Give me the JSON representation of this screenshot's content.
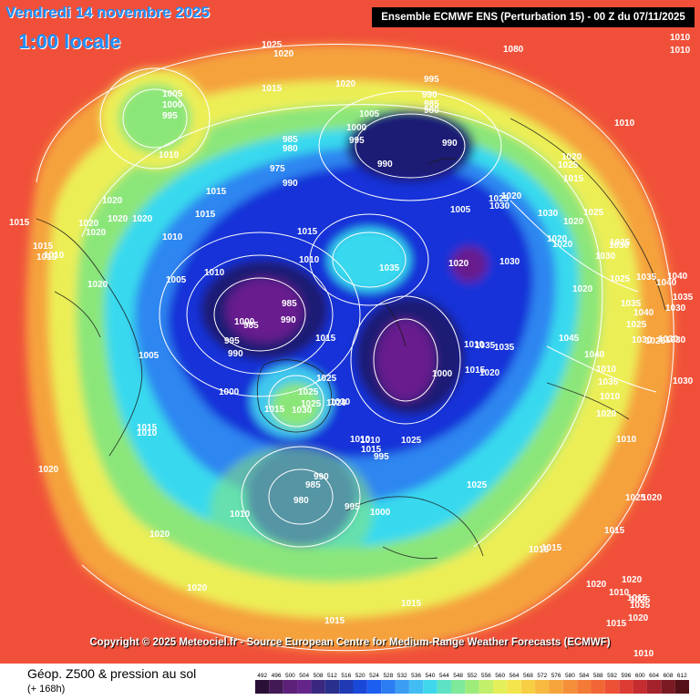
{
  "header": {
    "date": "Vendredi 14 novembre 2025",
    "time": "1:00 locale",
    "run": "Ensemble ECMWF ENS  (Perturbation 15)  -  00 Z du 07/11/2025"
  },
  "copyright": "Copyright © 2025 Meteociel.fr - Source European Centre for Medium-Range Weather Forecasts (ECMWF)",
  "footer": {
    "title": "Géop. Z500 & pression au sol",
    "subtitle": "(+ 168h)"
  },
  "colors": {
    "warm_outer": "#f0503a",
    "orange": "#f5a23c",
    "yellow": "#ecee57",
    "green": "#8be67a",
    "cyan": "#39d9ee",
    "blue": "#2d86f0",
    "deep_blue": "#1533d8",
    "navy": "#1a1f74",
    "purple": "#671f8e",
    "isobar": "#ffffff",
    "coast": "#1a1a1a"
  },
  "scale": {
    "labels": [
      "492",
      "496",
      "500",
      "504",
      "508",
      "512",
      "516",
      "520",
      "524",
      "528",
      "532",
      "536",
      "540",
      "544",
      "548",
      "552",
      "556",
      "560",
      "564",
      "568",
      "572",
      "576",
      "580",
      "584",
      "588",
      "592",
      "596",
      "600",
      "604",
      "608",
      "612"
    ],
    "colors": [
      "#2a1036",
      "#431a55",
      "#5d217a",
      "#652489",
      "#3a2780",
      "#28308c",
      "#1f3ab3",
      "#1a48d8",
      "#1b5ef0",
      "#2c7cf2",
      "#3c9df4",
      "#42bdf4",
      "#3fd7ec",
      "#5de2c4",
      "#7ee89b",
      "#9dec7a",
      "#c2ef6c",
      "#e4f05a",
      "#f4e44d",
      "#f7cf45",
      "#f7b940",
      "#f6a53c",
      "#f58f39",
      "#f47a37",
      "#f26636",
      "#ec5035",
      "#dc3c33",
      "#c42c30",
      "#a4222b",
      "#7c1a24",
      "#561018"
    ]
  },
  "map_labels": [
    {
      "text": "1025"
    },
    {
      "text": "1020"
    },
    {
      "text": "1015"
    },
    {
      "text": "1020"
    },
    {
      "text": "1005"
    },
    {
      "text": "1000"
    },
    {
      "text": "995"
    },
    {
      "text": "1010"
    },
    {
      "text": "995"
    },
    {
      "text": "990"
    },
    {
      "text": "985"
    },
    {
      "text": "980"
    },
    {
      "text": "990"
    },
    {
      "text": "1080"
    },
    {
      "text": "1010"
    },
    {
      "text": "1010"
    },
    {
      "text": "1005"
    },
    {
      "text": "1000"
    },
    {
      "text": "995"
    },
    {
      "text": "990"
    },
    {
      "text": "985"
    },
    {
      "text": "980"
    },
    {
      "text": "975"
    },
    {
      "text": "990"
    },
    {
      "text": "1010"
    },
    {
      "text": "1025"
    },
    {
      "text": "1020"
    },
    {
      "text": "1015"
    },
    {
      "text": "1015"
    },
    {
      "text": "1020"
    },
    {
      "text": "1020"
    },
    {
      "text": "1020"
    },
    {
      "text": "1020"
    },
    {
      "text": "1020"
    },
    {
      "text": "1015"
    },
    {
      "text": "1015"
    },
    {
      "text": "1015"
    },
    {
      "text": "1020"
    },
    {
      "text": "1010"
    },
    {
      "text": "1005"
    },
    {
      "text": "1025"
    },
    {
      "text": "1030"
    },
    {
      "text": "1020"
    },
    {
      "text": "1030"
    },
    {
      "text": "1020"
    },
    {
      "text": "1020"
    },
    {
      "text": "1005"
    },
    {
      "text": "1025"
    },
    {
      "text": "1010"
    },
    {
      "text": "1035"
    },
    {
      "text": "1020"
    },
    {
      "text": "1030"
    },
    {
      "text": "1015"
    },
    {
      "text": "1010"
    },
    {
      "text": "985"
    },
    {
      "text": "990"
    },
    {
      "text": "1000"
    },
    {
      "text": "995"
    },
    {
      "text": "990"
    },
    {
      "text": "985"
    },
    {
      "text": "1015"
    },
    {
      "text": "1035"
    },
    {
      "text": "1010"
    },
    {
      "text": "1000"
    },
    {
      "text": "1015"
    },
    {
      "text": "1020"
    },
    {
      "text": "1035"
    },
    {
      "text": "1045"
    },
    {
      "text": "1030"
    },
    {
      "text": "1040"
    },
    {
      "text": "1025"
    },
    {
      "text": "1035"
    },
    {
      "text": "1040"
    },
    {
      "text": "1035"
    },
    {
      "text": "1040"
    },
    {
      "text": "1030"
    },
    {
      "text": "1025"
    },
    {
      "text": "1020"
    },
    {
      "text": "1030"
    },
    {
      "text": "1020"
    },
    {
      "text": "1025"
    },
    {
      "text": "1030"
    },
    {
      "text": "1025"
    },
    {
      "text": "1030"
    },
    {
      "text": "1030"
    },
    {
      "text": "1010"
    },
    {
      "text": "1015"
    },
    {
      "text": "1025"
    },
    {
      "text": "1025"
    },
    {
      "text": "1025"
    },
    {
      "text": "1025"
    },
    {
      "text": "1020"
    },
    {
      "text": "1015"
    },
    {
      "text": "1030"
    },
    {
      "text": "1030"
    },
    {
      "text": "1025"
    },
    {
      "text": "1025"
    },
    {
      "text": "1015"
    },
    {
      "text": "1020"
    },
    {
      "text": "1020"
    },
    {
      "text": "1015"
    },
    {
      "text": "1020"
    },
    {
      "text": "1010"
    },
    {
      "text": "1020"
    },
    {
      "text": "1015"
    },
    {
      "text": "1010"
    },
    {
      "text": "990"
    },
    {
      "text": "985"
    },
    {
      "text": "980"
    },
    {
      "text": "995"
    },
    {
      "text": "1000"
    },
    {
      "text": "1010"
    },
    {
      "text": "995"
    },
    {
      "text": "1010"
    },
    {
      "text": "1015"
    },
    {
      "text": "1020"
    },
    {
      "text": "1020"
    },
    {
      "text": "1015"
    },
    {
      "text": "1020"
    },
    {
      "text": "1015"
    },
    {
      "text": "1010"
    },
    {
      "text": "1015"
    },
    {
      "text": "1015"
    },
    {
      "text": "1005"
    },
    {
      "text": "1000"
    },
    {
      "text": "1015"
    },
    {
      "text": "1010"
    },
    {
      "text": "1010"
    },
    {
      "text": "1035"
    },
    {
      "text": "1010"
    },
    {
      "text": "1010"
    },
    {
      "text": "1020"
    },
    {
      "text": "1025"
    },
    {
      "text": "1035"
    },
    {
      "text": "1040"
    },
    {
      "text": "1035"
    },
    {
      "text": "1030"
    },
    {
      "text": "1010"
    },
    {
      "text": "1015"
    },
    {
      "text": "1010"
    },
    {
      "text": "1025"
    },
    {
      "text": "1005"
    }
  ]
}
